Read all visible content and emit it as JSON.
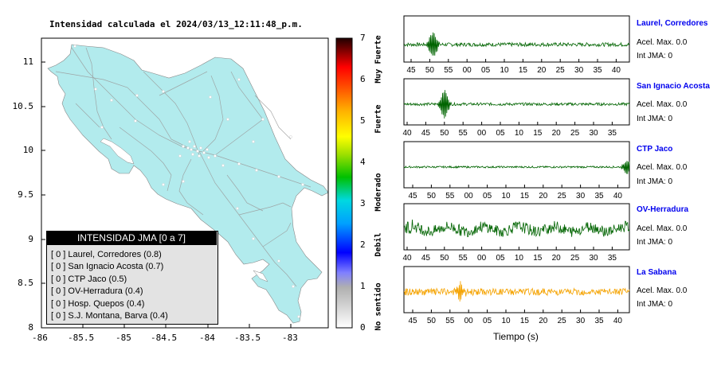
{
  "map": {
    "title": "Intensidad calculada el 2024/03/13_12:11:48_p.m.",
    "x_ticks": [
      "-86",
      "-85.5",
      "-85",
      "-84.5",
      "-84",
      "-83.5",
      "-83"
    ],
    "y_ticks": [
      "11",
      "10.5",
      "10",
      "9.5",
      "9",
      "8.5",
      "8"
    ],
    "land_color": "#b2ebed",
    "legend_title": "INTENSIDAD JMA [0 a 7]",
    "legend_items": [
      "[ 0 ]  Laurel, Corredores (0.8)",
      "[ 0 ]  San Ignacio Acosta (0.7)",
      "[ 0 ]  CTP Jaco (0.5)",
      "[ 0 ]  OV-Herradura (0.4)",
      "[ 0 ]  Hosp. Quepos (0.4)",
      "[ 0 ]  S.J. Montana, Barva (0.4)"
    ]
  },
  "colorbar": {
    "ticks": [
      "0",
      "1",
      "2",
      "3",
      "4",
      "5",
      "6",
      "7"
    ],
    "labels": [
      "No sentido",
      "Debil",
      "Moderado",
      "Fuerte",
      "Muy Fuerte"
    ]
  },
  "stations": [
    {
      "name": "Laurel, Corredores",
      "acel": "Acel. Max. 0.0",
      "jma": "Int JMA: 0",
      "ticks": [
        "45",
        "50",
        "55",
        "00",
        "05",
        "10",
        "15",
        "20",
        "25",
        "30",
        "35",
        "40"
      ],
      "color": "#006400"
    },
    {
      "name": "San Ignacio Acosta",
      "acel": "Acel. Max. 0.0",
      "jma": "Int JMA: 0",
      "ticks": [
        "40",
        "45",
        "50",
        "55",
        "00",
        "05",
        "10",
        "15",
        "20",
        "25",
        "30",
        "35"
      ],
      "color": "#006400"
    },
    {
      "name": "CTP Jaco",
      "acel": "Acel. Max. 0.0",
      "jma": "Int JMA: 0",
      "ticks": [
        "45",
        "50",
        "55",
        "00",
        "05",
        "10",
        "15",
        "20",
        "25",
        "30",
        "35",
        "40"
      ],
      "color": "#006400"
    },
    {
      "name": "OV-Herradura",
      "acel": "Acel. Max. 0.0",
      "jma": "Int JMA: 0",
      "ticks": [
        "40",
        "45",
        "50",
        "55",
        "00",
        "05",
        "10",
        "15",
        "20",
        "25",
        "30",
        "35"
      ],
      "color": "#006400"
    },
    {
      "name": "La Sabana",
      "acel": "Acel. Max. 0.0",
      "jma": "Int JMA: 0",
      "ticks": [
        "45",
        "50",
        "55",
        "00",
        "05",
        "10",
        "15",
        "20",
        "25",
        "30",
        "35",
        "40"
      ],
      "color": "#f5a300"
    }
  ],
  "xlabel": "Tiempo (s)",
  "chart_data": [
    {
      "type": "heatmap",
      "title": "Intensidad calculada el 2024/03/13_12:11:48_p.m.",
      "xlim": [
        -86,
        -82.5
      ],
      "ylim": [
        8,
        11.3
      ],
      "colorbar_range": [
        0,
        7
      ],
      "legend": [
        "Laurel, Corredores (0.8)",
        "San Ignacio Acosta (0.7)",
        "CTP Jaco (0.5)",
        "OV-Herradura (0.4)",
        "Hosp. Quepos (0.4)",
        "S.J. Montana, Barva (0.4)"
      ]
    },
    {
      "type": "line",
      "xlabel": "Tiempo (s)",
      "series": [
        {
          "name": "Laurel, Corredores",
          "acel_max": 0.0,
          "int_jma": 0
        },
        {
          "name": "San Ignacio Acosta",
          "acel_max": 0.0,
          "int_jma": 0
        },
        {
          "name": "CTP Jaco",
          "acel_max": 0.0,
          "int_jma": 0
        },
        {
          "name": "OV-Herradura",
          "acel_max": 0.0,
          "int_jma": 0
        },
        {
          "name": "La Sabana",
          "acel_max": 0.0,
          "int_jma": 0
        }
      ]
    }
  ]
}
